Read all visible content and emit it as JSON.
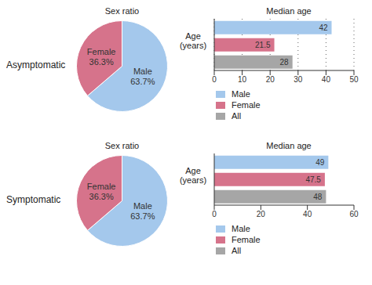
{
  "chart_data": [
    {
      "type": "pie",
      "title": "Sex ratio",
      "annotations": [
        "Asymptomatic"
      ],
      "categories": [
        "Male",
        "Female"
      ],
      "values": [
        63.7,
        36.3
      ],
      "value_labels": [
        "63.7%",
        "36.3%"
      ],
      "colors": [
        "#a4c8ec",
        "#d6738b"
      ]
    },
    {
      "type": "bar",
      "orientation": "horizontal",
      "title": "Median age",
      "ylabel": "Age (years)",
      "categories": [
        "Male",
        "Female",
        "All"
      ],
      "values": [
        42,
        21.5,
        28
      ],
      "colors": [
        "#a4c8ec",
        "#d6738b",
        "#a6a6a6"
      ],
      "xlim": [
        0,
        50
      ],
      "xticks": [
        0,
        10,
        20,
        30,
        40,
        50
      ],
      "grid": true,
      "data_labels": true,
      "legend": "bottom"
    },
    {
      "type": "pie",
      "title": "Sex ratio",
      "annotations": [
        "Symptomatic"
      ],
      "categories": [
        "Male",
        "Female"
      ],
      "values": [
        63.7,
        36.3
      ],
      "value_labels": [
        "63.7%",
        "36.3%"
      ],
      "colors": [
        "#a4c8ec",
        "#d6738b"
      ]
    },
    {
      "type": "bar",
      "orientation": "horizontal",
      "title": "Median age",
      "ylabel": "Age (years)",
      "categories": [
        "Male",
        "Female",
        "All"
      ],
      "values": [
        49,
        47.5,
        48
      ],
      "colors": [
        "#a4c8ec",
        "#d6738b",
        "#a6a6a6"
      ],
      "xlim": [
        0,
        60
      ],
      "xticks": [
        0,
        20,
        40,
        60
      ],
      "grid": false,
      "data_labels": true,
      "legend": "bottom"
    }
  ]
}
